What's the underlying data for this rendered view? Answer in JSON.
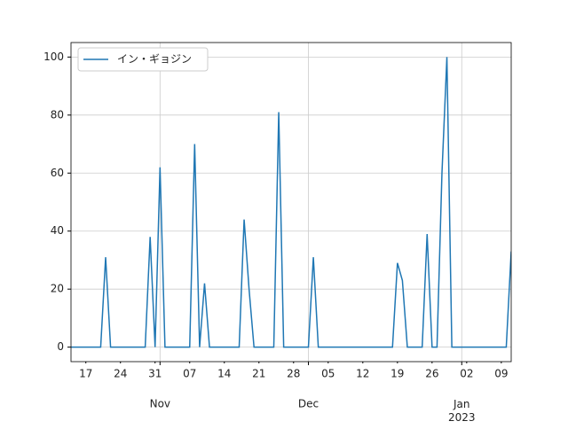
{
  "chart_data": {
    "type": "line",
    "x": [
      "2022-10-14",
      "2022-10-15",
      "2022-10-16",
      "2022-10-17",
      "2022-10-18",
      "2022-10-19",
      "2022-10-20",
      "2022-10-21",
      "2022-10-22",
      "2022-10-23",
      "2022-10-24",
      "2022-10-25",
      "2022-10-26",
      "2022-10-27",
      "2022-10-28",
      "2022-10-29",
      "2022-10-30",
      "2022-10-31",
      "2022-11-01",
      "2022-11-02",
      "2022-11-03",
      "2022-11-04",
      "2022-11-05",
      "2022-11-06",
      "2022-11-07",
      "2022-11-08",
      "2022-11-09",
      "2022-11-10",
      "2022-11-11",
      "2022-11-12",
      "2022-11-13",
      "2022-11-14",
      "2022-11-15",
      "2022-11-16",
      "2022-11-17",
      "2022-11-18",
      "2022-11-19",
      "2022-11-20",
      "2022-11-21",
      "2022-11-22",
      "2022-11-23",
      "2022-11-24",
      "2022-11-25",
      "2022-11-26",
      "2022-11-27",
      "2022-11-28",
      "2022-11-29",
      "2022-11-30",
      "2022-12-01",
      "2022-12-02",
      "2022-12-03",
      "2022-12-04",
      "2022-12-05",
      "2022-12-06",
      "2022-12-07",
      "2022-12-08",
      "2022-12-09",
      "2022-12-10",
      "2022-12-11",
      "2022-12-12",
      "2022-12-13",
      "2022-12-14",
      "2022-12-15",
      "2022-12-16",
      "2022-12-17",
      "2022-12-18",
      "2022-12-19",
      "2022-12-20",
      "2022-12-21",
      "2022-12-22",
      "2022-12-23",
      "2022-12-24",
      "2022-12-25",
      "2022-12-26",
      "2022-12-27",
      "2022-12-28",
      "2022-12-29",
      "2022-12-30",
      "2022-12-31",
      "2023-01-01",
      "2023-01-02",
      "2023-01-03",
      "2023-01-04",
      "2023-01-05",
      "2023-01-06",
      "2023-01-07",
      "2023-01-08",
      "2023-01-09",
      "2023-01-10",
      "2023-01-11"
    ],
    "series": [
      {
        "name": "イン・ギョジン",
        "color": "#1f77b4",
        "values": [
          0,
          0,
          0,
          0,
          0,
          0,
          0,
          31,
          0,
          0,
          0,
          0,
          0,
          0,
          0,
          0,
          38,
          0,
          62,
          0,
          0,
          0,
          0,
          0,
          0,
          70,
          0,
          22,
          0,
          0,
          0,
          0,
          0,
          0,
          0,
          44,
          20,
          0,
          0,
          0,
          0,
          0,
          81,
          0,
          0,
          0,
          0,
          0,
          0,
          31,
          0,
          0,
          0,
          0,
          0,
          0,
          0,
          0,
          0,
          0,
          0,
          0,
          0,
          0,
          0,
          0,
          29,
          23,
          0,
          0,
          0,
          0,
          39,
          0,
          0,
          60,
          100,
          0,
          0,
          0,
          0,
          0,
          0,
          0,
          0,
          0,
          0,
          0,
          0,
          33
        ]
      }
    ],
    "xlim": [
      "2022-10-14",
      "2023-01-11"
    ],
    "xticks": [
      {
        "value": "2022-10-17",
        "label": "17"
      },
      {
        "value": "2022-10-24",
        "label": "24"
      },
      {
        "value": "2022-10-31",
        "label": "31"
      },
      {
        "value": "2022-11-07",
        "label": "07"
      },
      {
        "value": "2022-11-14",
        "label": "14"
      },
      {
        "value": "2022-11-21",
        "label": "21"
      },
      {
        "value": "2022-11-28",
        "label": "28"
      },
      {
        "value": "2022-12-05",
        "label": "05"
      },
      {
        "value": "2022-12-12",
        "label": "12"
      },
      {
        "value": "2022-12-19",
        "label": "19"
      },
      {
        "value": "2022-12-26",
        "label": "26"
      },
      {
        "value": "2023-01-02",
        "label": "02"
      },
      {
        "value": "2023-01-09",
        "label": "09"
      }
    ],
    "xticks_major": [
      {
        "value": "2022-11-01",
        "label": "Nov"
      },
      {
        "value": "2022-12-01",
        "label": "Dec"
      },
      {
        "value": "2023-01-01",
        "label": "Jan\n2023"
      }
    ],
    "ylim": [
      -5,
      105
    ],
    "yticks": [
      0,
      20,
      40,
      60,
      80,
      100
    ],
    "grid": true,
    "legend": "upper left"
  }
}
